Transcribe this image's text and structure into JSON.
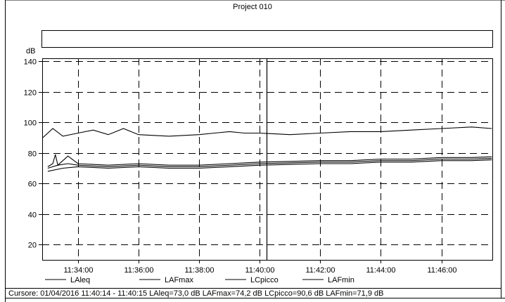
{
  "header": {
    "project_title": "Project 010"
  },
  "status": {
    "cursor_text": "Cursore: 01/04/2016 11:40:14 - 11:40:15  LAleq=73,0 dB  LAFmax=74,2 dB  LCpicco=90,6 dB  LAFmin=71,9 dB"
  },
  "chart_data": {
    "type": "line",
    "ylabel": "dB",
    "xlabel": "",
    "ylim": [
      10,
      142
    ],
    "y_ticks": [
      20,
      40,
      60,
      80,
      100,
      120,
      140
    ],
    "y_tick_labels": [
      "20",
      "40",
      "60",
      "80",
      "100",
      "120",
      "140"
    ],
    "x_ticks": [
      "11:34:00",
      "11:36:00",
      "11:38:00",
      "11:40:00",
      "11:42:00",
      "11:44:00",
      "11:46:00"
    ],
    "x_range": [
      "11:32:49",
      "11:47:41"
    ],
    "cursor_time": "11:40:14",
    "grid": true,
    "legend_position": "bottom",
    "series": [
      {
        "name": "LAleq",
        "points": [
          [
            "11:33:00",
            70
          ],
          [
            "11:33:20",
            72
          ],
          [
            "11:33:40",
            73
          ],
          [
            "11:34:00",
            72
          ],
          [
            "11:35:00",
            71
          ],
          [
            "11:36:00",
            72
          ],
          [
            "11:37:00",
            71
          ],
          [
            "11:38:00",
            71
          ],
          [
            "11:39:00",
            72
          ],
          [
            "11:40:00",
            73
          ],
          [
            "11:41:00",
            73.5
          ],
          [
            "11:42:00",
            74
          ],
          [
            "11:43:00",
            74
          ],
          [
            "11:44:00",
            75
          ],
          [
            "11:45:00",
            75
          ],
          [
            "11:46:00",
            76
          ],
          [
            "11:47:00",
            76
          ],
          [
            "11:47:40",
            76.5
          ]
        ]
      },
      {
        "name": "LAFmax",
        "points": [
          [
            "11:33:00",
            71
          ],
          [
            "11:33:10",
            73
          ],
          [
            "11:33:15",
            79
          ],
          [
            "11:33:20",
            72
          ],
          [
            "11:33:40",
            78
          ],
          [
            "11:34:00",
            73
          ],
          [
            "11:35:00",
            72
          ],
          [
            "11:36:00",
            73
          ],
          [
            "11:37:00",
            72
          ],
          [
            "11:38:00",
            72
          ],
          [
            "11:39:00",
            73
          ],
          [
            "11:40:00",
            74
          ],
          [
            "11:41:00",
            74.5
          ],
          [
            "11:42:00",
            75
          ],
          [
            "11:43:00",
            75
          ],
          [
            "11:44:00",
            76
          ],
          [
            "11:45:00",
            76
          ],
          [
            "11:46:00",
            77
          ],
          [
            "11:47:00",
            77
          ],
          [
            "11:47:40",
            77.5
          ]
        ]
      },
      {
        "name": "LCpicco",
        "points": [
          [
            "11:32:50",
            90
          ],
          [
            "11:33:10",
            96
          ],
          [
            "11:33:30",
            91
          ],
          [
            "11:34:00",
            93
          ],
          [
            "11:34:30",
            95
          ],
          [
            "11:35:00",
            92
          ],
          [
            "11:35:30",
            96
          ],
          [
            "11:36:00",
            92
          ],
          [
            "11:37:00",
            91
          ],
          [
            "11:38:00",
            92
          ],
          [
            "11:38:30",
            93
          ],
          [
            "11:39:00",
            94
          ],
          [
            "11:39:30",
            93
          ],
          [
            "11:40:00",
            93
          ],
          [
            "11:41:00",
            92
          ],
          [
            "11:42:00",
            93
          ],
          [
            "11:43:00",
            94
          ],
          [
            "11:44:00",
            94
          ],
          [
            "11:45:00",
            95
          ],
          [
            "11:46:00",
            96
          ],
          [
            "11:47:00",
            97
          ],
          [
            "11:47:40",
            96
          ]
        ]
      },
      {
        "name": "LAFmin",
        "points": [
          [
            "11:33:00",
            68
          ],
          [
            "11:33:30",
            70
          ],
          [
            "11:34:00",
            71
          ],
          [
            "11:35:00",
            70
          ],
          [
            "11:36:00",
            71
          ],
          [
            "11:37:00",
            70
          ],
          [
            "11:38:00",
            70
          ],
          [
            "11:39:00",
            71
          ],
          [
            "11:40:00",
            72
          ],
          [
            "11:41:00",
            72.5
          ],
          [
            "11:42:00",
            73
          ],
          [
            "11:43:00",
            73
          ],
          [
            "11:44:00",
            74
          ],
          [
            "11:45:00",
            74
          ],
          [
            "11:46:00",
            75
          ],
          [
            "11:47:00",
            75
          ],
          [
            "11:47:40",
            75.5
          ]
        ]
      }
    ]
  }
}
